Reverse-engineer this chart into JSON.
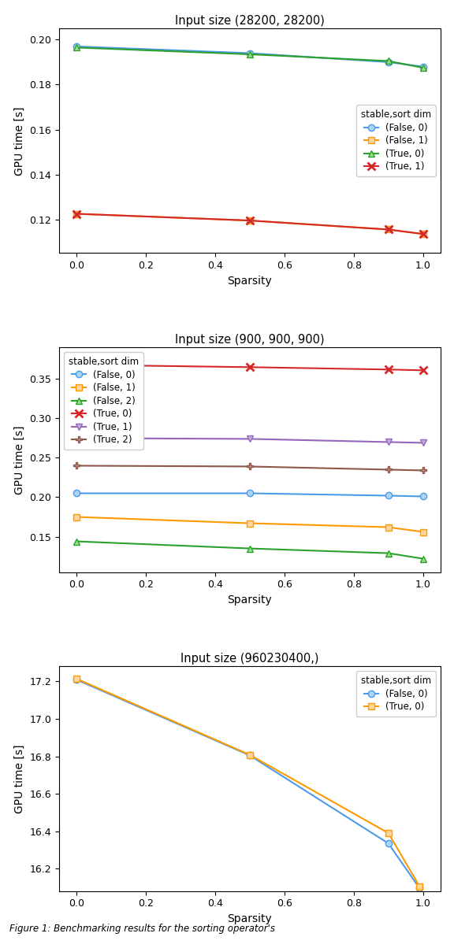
{
  "plot1": {
    "title": "Input size (28200, 28200)",
    "xlabel": "Sparsity",
    "ylabel": "GPU time [s]",
    "sparsity": [
      0.0,
      0.5,
      0.9,
      1.0
    ],
    "series": [
      {
        "label": "(False, 0)",
        "color": "#4c9be8",
        "marker": "o",
        "markerfacecolor": "#aad4f5",
        "values": [
          0.197,
          0.194,
          0.19,
          0.188
        ]
      },
      {
        "label": "(False, 1)",
        "color": "#ff9900",
        "marker": "s",
        "markerfacecolor": "#ffd699",
        "values": [
          0.1225,
          0.1195,
          0.1155,
          0.1135
        ]
      },
      {
        "label": "(True, 0)",
        "color": "#2ca02c",
        "marker": "^",
        "markerfacecolor": "#98df8a",
        "values": [
          0.1965,
          0.1935,
          0.1905,
          0.1875
        ]
      },
      {
        "label": "(True, 1)",
        "color": "#d62728",
        "marker": "x",
        "markerfacecolor": "none",
        "values": [
          0.1225,
          0.1195,
          0.1155,
          0.1135
        ]
      }
    ],
    "ylim": [
      0.105,
      0.205
    ],
    "yticks": [
      0.12,
      0.14,
      0.16,
      0.18,
      0.2
    ],
    "legend_loc": "center right",
    "legend_bbox": null
  },
  "plot2": {
    "title": "Input size (900, 900, 900)",
    "xlabel": "Sparsity",
    "ylabel": "GPU time [s]",
    "sparsity": [
      0.0,
      0.5,
      0.9,
      1.0
    ],
    "series": [
      {
        "label": "(False, 0)",
        "color": "#4c9be8",
        "marker": "o",
        "markerfacecolor": "#aad4f5",
        "values": [
          0.205,
          0.205,
          0.202,
          0.201
        ]
      },
      {
        "label": "(False, 1)",
        "color": "#ff9900",
        "marker": "s",
        "markerfacecolor": "#ffd699",
        "values": [
          0.175,
          0.167,
          0.162,
          0.156
        ]
      },
      {
        "label": "(False, 2)",
        "color": "#2ca02c",
        "marker": "^",
        "markerfacecolor": "#98df8a",
        "values": [
          0.144,
          0.135,
          0.129,
          0.122
        ]
      },
      {
        "label": "(True, 0)",
        "color": "#d62728",
        "marker": "x",
        "markerfacecolor": "none",
        "values": [
          0.368,
          0.365,
          0.362,
          0.361
        ]
      },
      {
        "label": "(True, 1)",
        "color": "#9467bd",
        "marker": "v",
        "markerfacecolor": "#c5b0d5",
        "values": [
          0.275,
          0.274,
          0.27,
          0.269
        ]
      },
      {
        "label": "(True, 2)",
        "color": "#8c564b",
        "marker": "P",
        "markerfacecolor": "#c49c94",
        "values": [
          0.24,
          0.239,
          0.235,
          0.234
        ]
      }
    ],
    "ylim": [
      0.105,
      0.39
    ],
    "yticks": [
      0.15,
      0.2,
      0.25,
      0.3,
      0.35
    ],
    "legend_loc": "upper left",
    "legend_bbox": null
  },
  "plot3": {
    "title": "Input size (960230400,)",
    "xlabel": "Sparsity",
    "ylabel": "GPU time [s]",
    "sparsity": [
      0.0,
      0.5,
      0.9,
      0.99
    ],
    "series": [
      {
        "label": "(False, 0)",
        "color": "#4c9be8",
        "marker": "o",
        "markerfacecolor": "#aad4f5",
        "values": [
          17.21,
          16.805,
          16.335,
          16.095
        ]
      },
      {
        "label": "(True, 0)",
        "color": "#ff9900",
        "marker": "s",
        "markerfacecolor": "#ffd699",
        "values": [
          17.215,
          16.808,
          16.39,
          16.105
        ]
      }
    ],
    "ylim": [
      16.08,
      17.28
    ],
    "yticks": [
      16.2,
      16.4,
      16.6,
      16.8,
      17.0,
      17.2
    ],
    "legend_loc": "upper right",
    "legend_bbox": null
  },
  "figsize": [
    5.76,
    12.04
  ],
  "dpi": 100,
  "caption": "Figure 1: Benchmarking results for the sorting operator's"
}
